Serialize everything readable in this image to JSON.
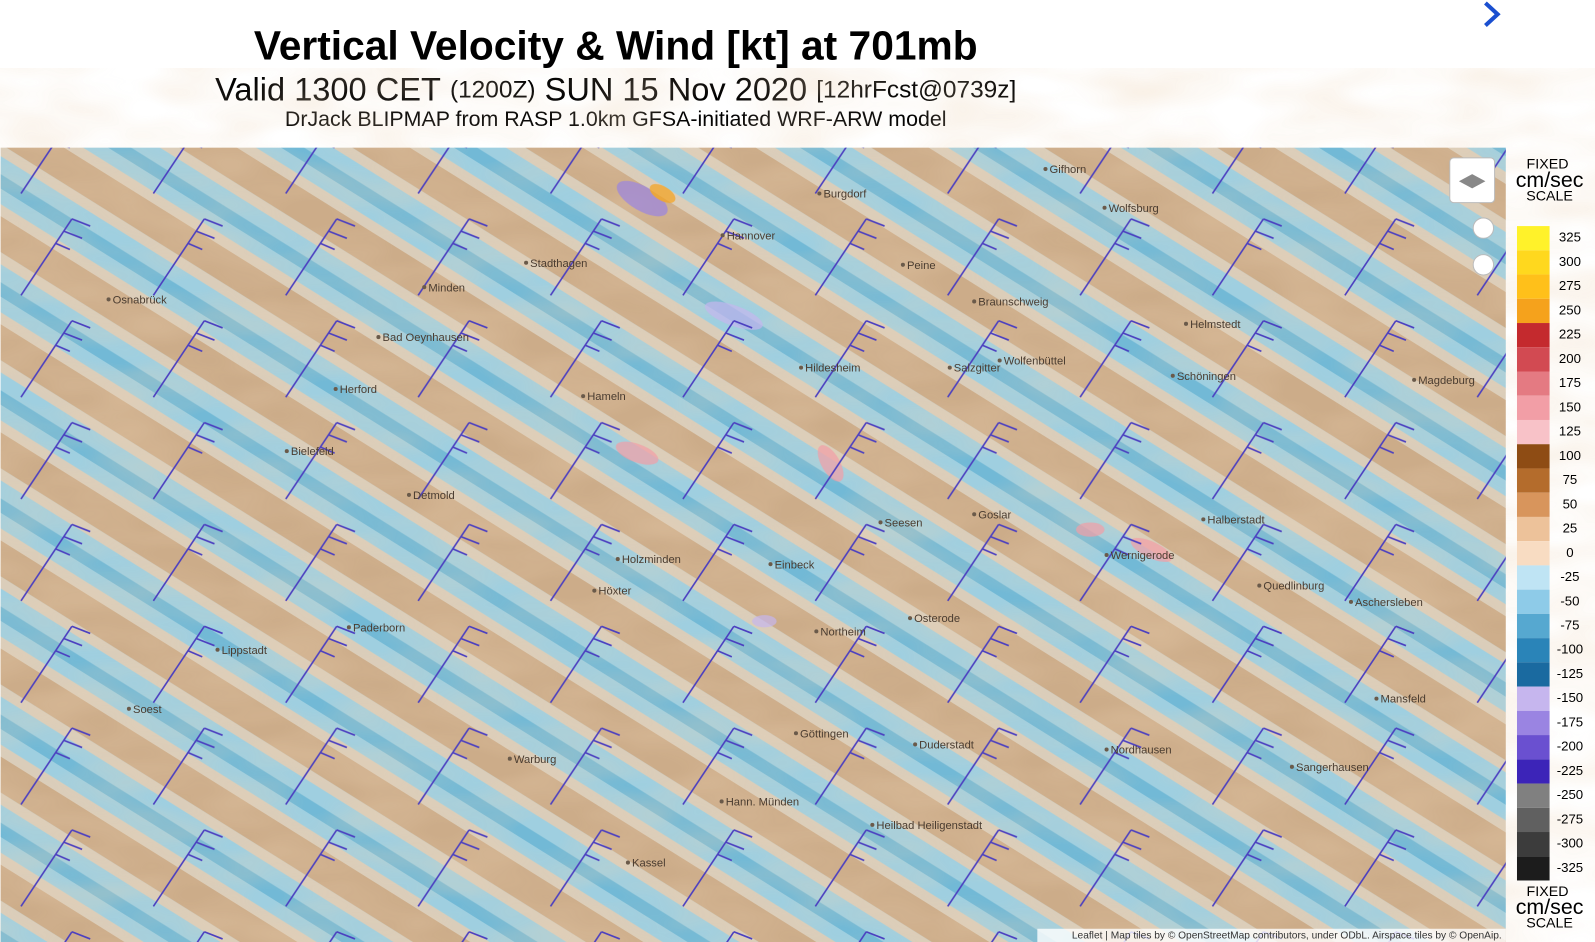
{
  "header": {
    "title": "Vertical Velocity & Wind [kt] at 701mb",
    "valid": "Valid 1300 CET",
    "zulu": "(1200Z)",
    "date": "SUN 15 Nov 2020",
    "forecast": "[12hrFcst@0739z]",
    "source": "DrJack BLIPMAP from RASP 1.0km GFSA-initiated WRF-ARW model"
  },
  "scale": {
    "top_label": [
      "FIXED",
      "cm/sec",
      "SCALE"
    ],
    "bottom_label": [
      "FIXED",
      "cm/sec",
      "SCALE"
    ],
    "levels": [
      {
        "value": 325,
        "color": "#fff22a"
      },
      {
        "value": 300,
        "color": "#ffd81e"
      },
      {
        "value": 275,
        "color": "#ffc01a"
      },
      {
        "value": 250,
        "color": "#f5a21c"
      },
      {
        "value": 225,
        "color": "#c42a2e"
      },
      {
        "value": 200,
        "color": "#d24a52"
      },
      {
        "value": 175,
        "color": "#e47a82"
      },
      {
        "value": 150,
        "color": "#f29ea6"
      },
      {
        "value": 125,
        "color": "#f8c2c8"
      },
      {
        "value": 100,
        "color": "#8e4c14"
      },
      {
        "value": 75,
        "color": "#b46c2c"
      },
      {
        "value": 50,
        "color": "#d8955c"
      },
      {
        "value": 25,
        "color": "#edc29a"
      },
      {
        "value": 0,
        "color": "#f8dcc2"
      },
      {
        "value": -25,
        "color": "#bfe4f4"
      },
      {
        "value": -50,
        "color": "#8ecbe8"
      },
      {
        "value": -75,
        "color": "#56a8d0"
      },
      {
        "value": -100,
        "color": "#2a84b8"
      },
      {
        "value": -125,
        "color": "#1a6aa0"
      },
      {
        "value": -150,
        "color": "#c6b6ee"
      },
      {
        "value": -175,
        "color": "#9a84e2"
      },
      {
        "value": -200,
        "color": "#6a50d0"
      },
      {
        "value": -225,
        "color": "#3c24b8"
      },
      {
        "value": -250,
        "color": "#808080"
      },
      {
        "value": -275,
        "color": "#606060"
      },
      {
        "value": -300,
        "color": "#3c3c3c"
      },
      {
        "value": -325,
        "color": "#1c1c1c"
      }
    ]
  },
  "map": {
    "places": [
      "Hannover",
      "Braunschweig",
      "Wolfsburg",
      "Magdeburg",
      "Hildesheim",
      "Salzgitter",
      "Osnabrück",
      "Bielefeld",
      "Hameln",
      "Göttingen",
      "Kassel",
      "Paderborn",
      "Minden",
      "Halberstadt",
      "Wernigerode",
      "Goslar",
      "Northeim",
      "Herford",
      "Lippstadt",
      "Soest",
      "Detmold",
      "Höxter",
      "Holzminden",
      "Einbeck",
      "Osterode",
      "Seesen",
      "Quedlinburg",
      "Nordhausen",
      "Sangerhausen",
      "Mansfeld",
      "Aschersleben",
      "Wolfenbüttel",
      "Hann. Münden",
      "Warburg",
      "Peine",
      "Gifhorn",
      "Burgdorf",
      "Stadthagen",
      "Bad Oeynhausen",
      "Schöningen",
      "Helmstedt",
      "Duderstadt",
      "Heilbad Heiligenstadt"
    ],
    "attribution": "Leaflet | Map tiles by © OpenStreetMap contributors, under ODbL. Airspace tiles by © OpenAip."
  }
}
